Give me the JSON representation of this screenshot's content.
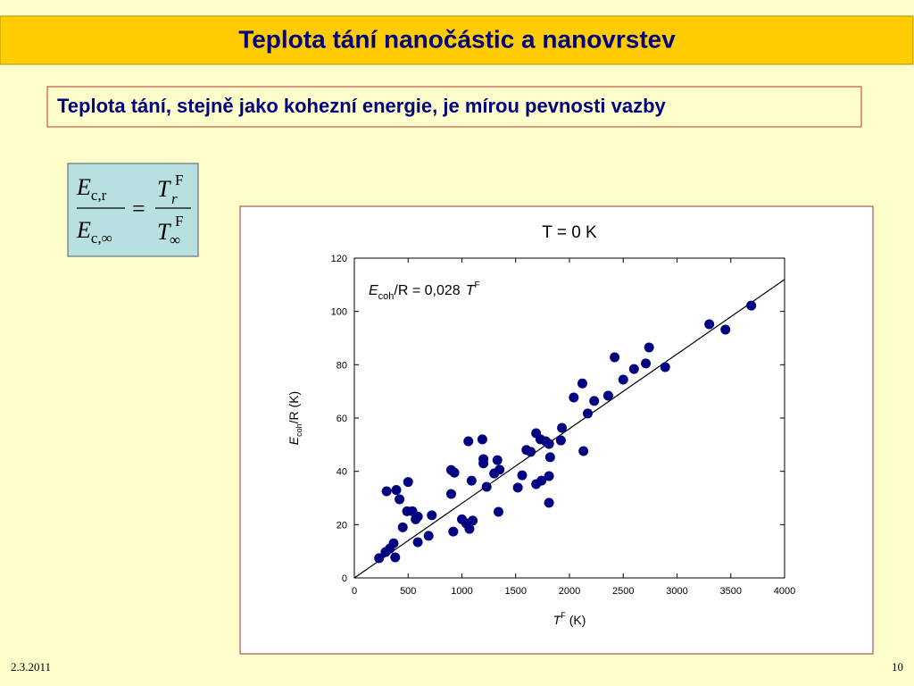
{
  "header": {
    "title": "Teplota tání nanočástic a nanovrstev"
  },
  "subtitle": "Teplota tání, stejně jako kohezní energie, je mírou pevnosti vazby",
  "formula": {
    "lhs_num": {
      "main": "E",
      "sub": "c,r"
    },
    "lhs_den": {
      "main": "E",
      "sub": "c,∞"
    },
    "equals": "=",
    "rhs_num": {
      "main": "T",
      "sup": "F",
      "sub": "r"
    },
    "rhs_den": {
      "main": "T",
      "sup": "F",
      "sub": "∞"
    }
  },
  "chart_data": {
    "type": "scatter",
    "title": "T = 0 K",
    "xlabel": {
      "main": "T",
      "sup": "F",
      "rest": "(K)"
    },
    "ylabel": {
      "main": "E",
      "sub": "coh",
      "rest": "/R (K)"
    },
    "annotation": {
      "main": "E",
      "sub": "coh",
      "rest": "/R = 0,028",
      "var": "T",
      "sup": "F"
    },
    "fit_slope": 0.028,
    "fit_color": "#000000",
    "color": "#000080",
    "x": [
      230,
      290,
      330,
      365,
      380,
      300,
      390,
      420,
      450,
      490,
      500,
      540,
      570,
      590,
      590,
      690,
      720,
      900,
      930,
      900,
      920,
      1000,
      1040,
      1070,
      1100,
      1060,
      1090,
      1190,
      1200,
      1200,
      1230,
      1300,
      1330,
      1350,
      1340,
      1520,
      1560,
      1600,
      1640,
      1690,
      1690,
      1730,
      1740,
      1780,
      1810,
      1820,
      1810,
      1810,
      1920,
      1930,
      2040,
      2120,
      2130,
      2170,
      2230,
      2360,
      2420,
      2500,
      2600,
      2710,
      2740,
      2890,
      3300,
      3450,
      3690
    ],
    "values": [
      7.4,
      9.7,
      11,
      13,
      7.7,
      32.5,
      33,
      29.5,
      19,
      25,
      36,
      25,
      22,
      23,
      13.4,
      15.8,
      23.5,
      40.5,
      39.5,
      31.5,
      17.4,
      22,
      20.5,
      18.4,
      21.5,
      51.3,
      36.5,
      52,
      44.6,
      43,
      34.2,
      39.2,
      44.2,
      40.6,
      24.8,
      33.9,
      38.5,
      48,
      47.3,
      54.3,
      35.2,
      52,
      36.5,
      51.3,
      38.2,
      45.3,
      50.3,
      28.2,
      51.6,
      56.3,
      67.7,
      73,
      47.6,
      61.7,
      66.4,
      68.4,
      82.8,
      74.4,
      78.4,
      80.5,
      86.5,
      79.1,
      95.2,
      93.2,
      102.2
    ],
    "xlim": [
      0,
      4000
    ],
    "ylim": [
      0,
      120
    ],
    "xticks": [
      0,
      500,
      1000,
      1500,
      2000,
      2500,
      3000,
      3500,
      4000
    ],
    "yticks": [
      0,
      20,
      40,
      60,
      80,
      100,
      120
    ]
  },
  "footer": {
    "date": "2.3.2011",
    "page": "10"
  }
}
